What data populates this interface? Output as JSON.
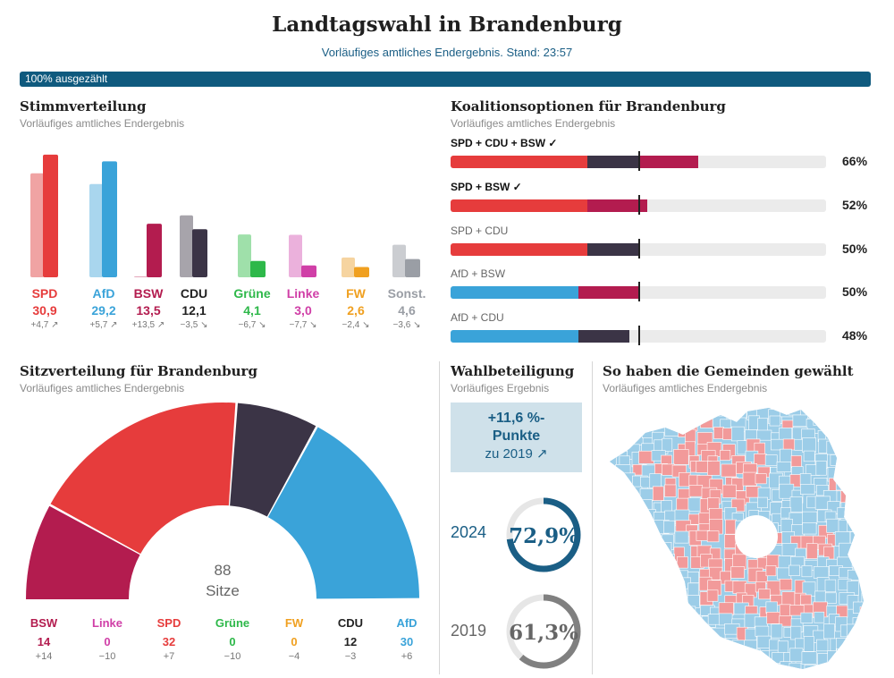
{
  "header": {
    "title": "Landtagswahl in Brandenburg",
    "subtitle": "Vorläufiges amtliches Endergebnis. Stand: 23:57",
    "progress_label": "100% ausgezählt",
    "progress_fraction": 1.0
  },
  "colors": {
    "SPD": "#e63c3c",
    "SPD_prev": "#f0a3a3",
    "AfD": "#3aa3d9",
    "AfD_prev": "#a9d6ee",
    "BSW": "#b31c4f",
    "BSW_prev": "#e3a5ba",
    "CDU": "#3b3446",
    "CDU_prev": "#a7a4ab",
    "Gruene": "#2eb84a",
    "Gruene_prev": "#9fe0aa",
    "Linke": "#d03fa7",
    "Linke_prev": "#ebb1dc",
    "FW": "#f0a020",
    "FW_prev": "#f6d4a0",
    "Sonst": "#9a9ea5",
    "Sonst_prev": "#cbcdd1",
    "map_light": "#9ccde8",
    "map_red": "#f29a9a"
  },
  "votes": {
    "title": "Stimmverteilung",
    "subtitle": "Vorläufiges amtliches Endergebnis"
  },
  "coalitions": {
    "title": "Koalitionsoptionen für Brandenburg",
    "subtitle": "Vorläufiges amtliches Endergebnis",
    "items": [
      {
        "label": "SPD + CDU + BSW ✓",
        "majority": true,
        "pct": "66%",
        "parts": [
          {
            "party": "SPD",
            "value": 32
          },
          {
            "party": "CDU",
            "value": 12
          },
          {
            "party": "BSW",
            "value": 14
          }
        ]
      },
      {
        "label": "SPD + BSW ✓",
        "majority": true,
        "pct": "52%",
        "parts": [
          {
            "party": "SPD",
            "value": 32
          },
          {
            "party": "BSW",
            "value": 14
          }
        ]
      },
      {
        "label": "SPD + CDU",
        "majority": false,
        "pct": "50%",
        "parts": [
          {
            "party": "SPD",
            "value": 32
          },
          {
            "party": "CDU",
            "value": 12
          }
        ]
      },
      {
        "label": "AfD + BSW",
        "majority": false,
        "pct": "50%",
        "parts": [
          {
            "party": "AfD",
            "value": 30
          },
          {
            "party": "BSW",
            "value": 14
          }
        ]
      },
      {
        "label": "AfD + CDU",
        "majority": false,
        "pct": "48%",
        "parts": [
          {
            "party": "AfD",
            "value": 30
          },
          {
            "party": "CDU",
            "value": 12
          }
        ]
      }
    ]
  },
  "seats": {
    "title": "Sitzverteilung für Brandenburg",
    "subtitle": "Vorläufiges amtliches Endergebnis",
    "total_number": "88",
    "total_label": "Sitze"
  },
  "turnout": {
    "title": "Wahlbeteiligung",
    "subtitle": "Vorläufiges Ergebnis",
    "change_line1": "+11,6 %-",
    "change_line2": "Punkte",
    "change_line3": "zu 2019 ↗",
    "years": [
      {
        "year": "2024",
        "value_label": "72,9%",
        "value": 72.9
      },
      {
        "year": "2019",
        "value_label": "61,3%",
        "value": 61.3
      }
    ]
  },
  "map": {
    "title": "So haben die Gemeinden gewählt",
    "subtitle": "Vorläufiges amtliches Endergebnis"
  },
  "chart_data": [
    {
      "type": "bar",
      "title": "Stimmverteilung",
      "categories": [
        "SPD",
        "AfD",
        "BSW",
        "CDU",
        "Grüne",
        "Linke",
        "FW",
        "Sonst."
      ],
      "series": [
        {
          "name": "2024",
          "values": [
            30.9,
            29.2,
            13.5,
            12.1,
            4.1,
            3.0,
            2.6,
            4.6
          ]
        },
        {
          "name": "2019",
          "values": [
            26.2,
            23.5,
            0.0,
            15.6,
            10.8,
            10.7,
            5.0,
            8.2
          ]
        }
      ],
      "value_labels": [
        "30,9",
        "29,2",
        "13,5",
        "12,1",
        "4,1",
        "3,0",
        "2,6",
        "4,6"
      ],
      "diff_labels": [
        "+4,7 ↗",
        "+5,7 ↗",
        "+13,5 ↗",
        "−3,5 ↘",
        "−6,7 ↘",
        "−7,7 ↘",
        "−2,4 ↘",
        "−3,6 ↘"
      ],
      "ylim": [
        0,
        32
      ]
    },
    {
      "type": "pie",
      "title": "Sitzverteilung für Brandenburg",
      "categories": [
        "BSW",
        "Linke",
        "SPD",
        "Grüne",
        "FW",
        "CDU",
        "AfD"
      ],
      "values": [
        14,
        0,
        32,
        0,
        0,
        12,
        30
      ],
      "diff_labels": [
        "+14",
        "−10",
        "+7",
        "−10",
        "−4",
        "−3",
        "+6"
      ]
    }
  ]
}
